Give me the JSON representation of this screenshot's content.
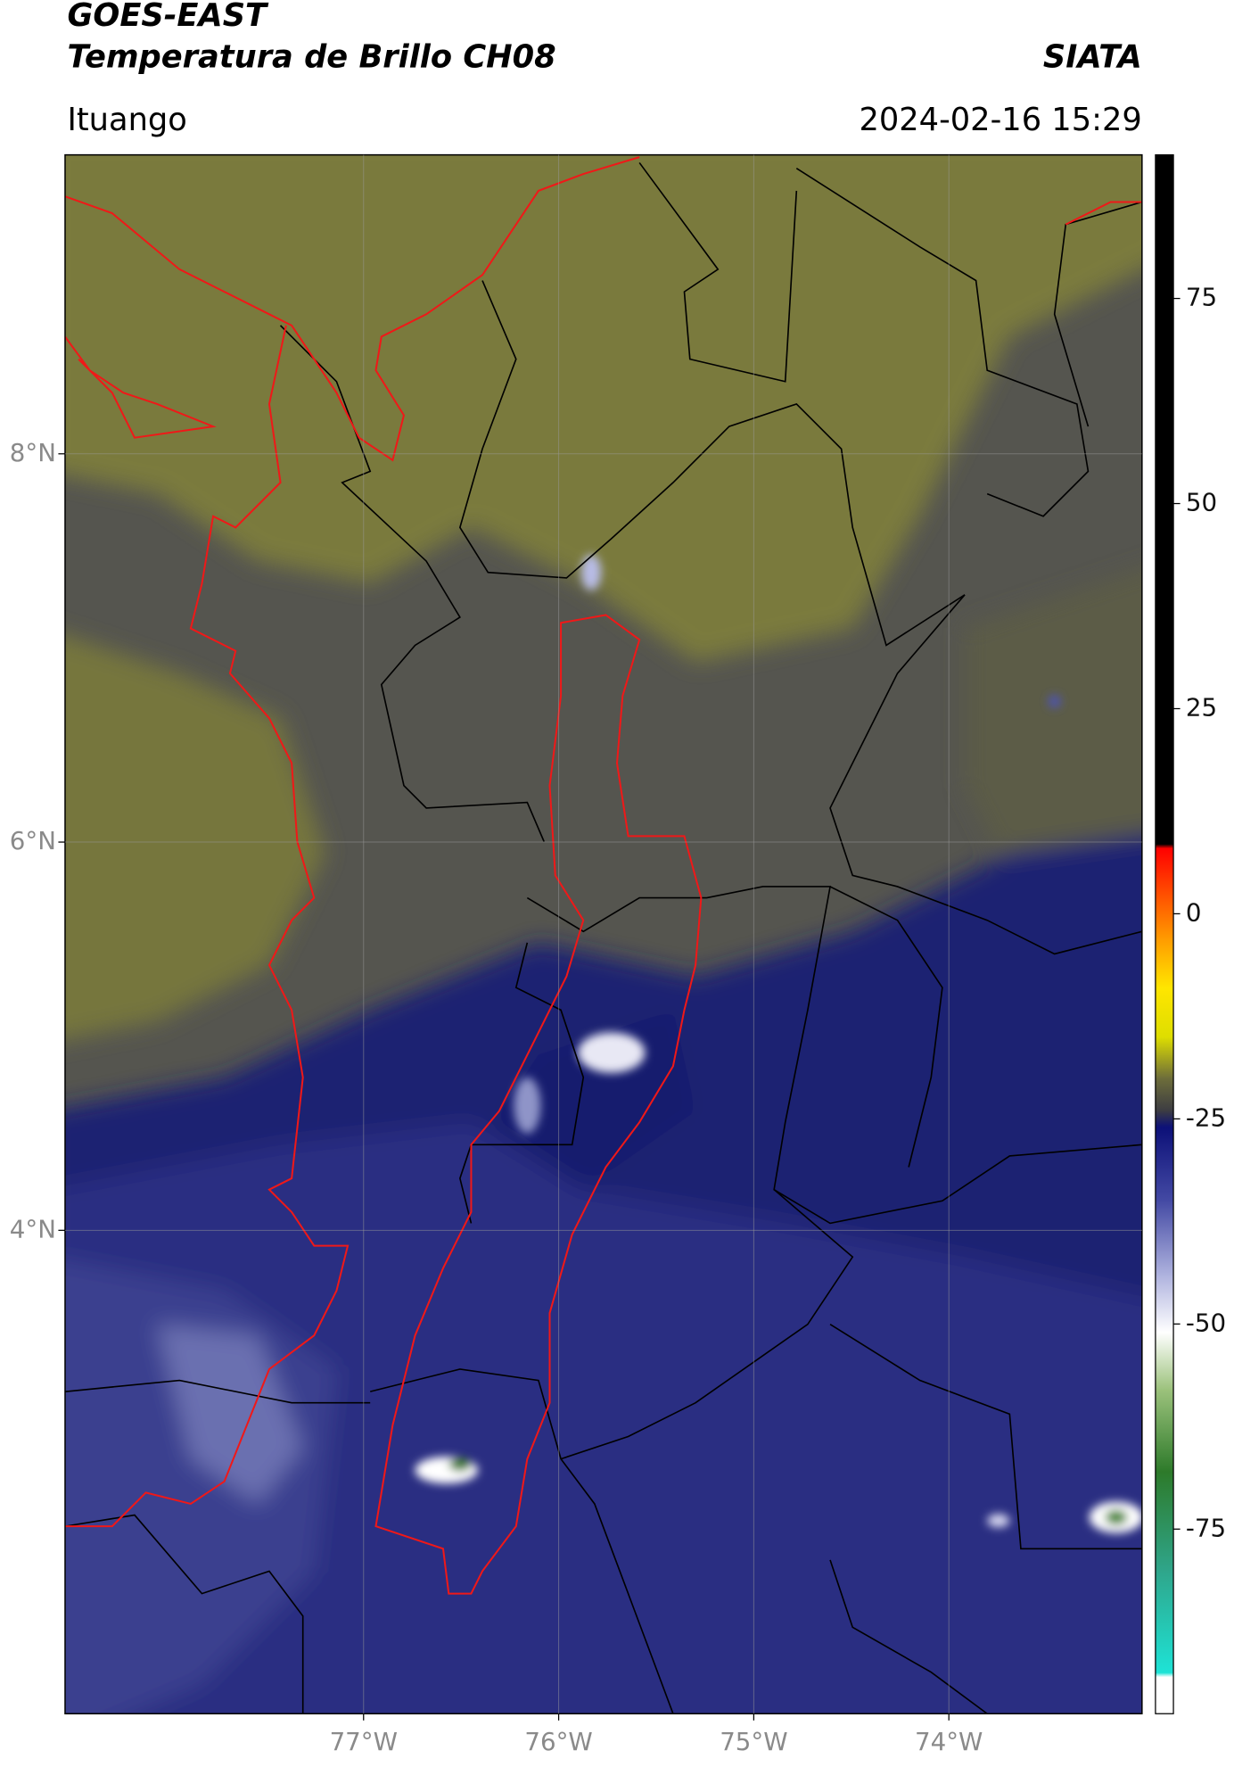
{
  "header": {
    "title": "GOES-EAST",
    "subtitle": "Temperatura de Brillo CH08",
    "agency": "SIATA",
    "location": "Ituango",
    "datetime": "2024-02-16 15:29"
  },
  "map": {
    "xlim": [
      -78.53,
      -73.01
    ],
    "ylim": [
      1.51,
      9.54
    ],
    "xticks": [
      {
        "value": -77,
        "label": "77°W"
      },
      {
        "value": -76,
        "label": "76°W"
      },
      {
        "value": -75,
        "label": "75°W"
      },
      {
        "value": -74,
        "label": "74°W"
      }
    ],
    "yticks": [
      {
        "value": 8,
        "label": "8°N"
      },
      {
        "value": 6,
        "label": "6°N"
      },
      {
        "value": 4,
        "label": "4°N"
      }
    ],
    "grid": true
  },
  "colorbar": {
    "clim": [
      -97.5,
      92.5
    ],
    "ticks": [
      75,
      50,
      25,
      0,
      -25,
      -50,
      -75
    ],
    "stops": [
      {
        "value": -97.5,
        "color": "#ffffff"
      },
      {
        "value": -93,
        "color": "#ffffff"
      },
      {
        "value": -92.5,
        "color": "#1ee3d6"
      },
      {
        "value": -80,
        "color": "#2fa58a"
      },
      {
        "value": -68,
        "color": "#2d7a2a"
      },
      {
        "value": -58,
        "color": "#9cc27c"
      },
      {
        "value": -51,
        "color": "#ffffff"
      },
      {
        "value": -44,
        "color": "#aeb2de"
      },
      {
        "value": -35,
        "color": "#444aa4"
      },
      {
        "value": -26,
        "color": "#0c1078"
      },
      {
        "value": -24,
        "color": "#3c3c42"
      },
      {
        "value": -20,
        "color": "#6e6e3a"
      },
      {
        "value": -15,
        "color": "#dede00"
      },
      {
        "value": -9,
        "color": "#ffe600"
      },
      {
        "value": -3,
        "color": "#ff9a00"
      },
      {
        "value": 5,
        "color": "#ff2a00"
      },
      {
        "value": 8,
        "color": "#ff0000"
      },
      {
        "value": 8.5,
        "color": "#000000"
      },
      {
        "value": 92.5,
        "color": "#000000"
      }
    ]
  }
}
